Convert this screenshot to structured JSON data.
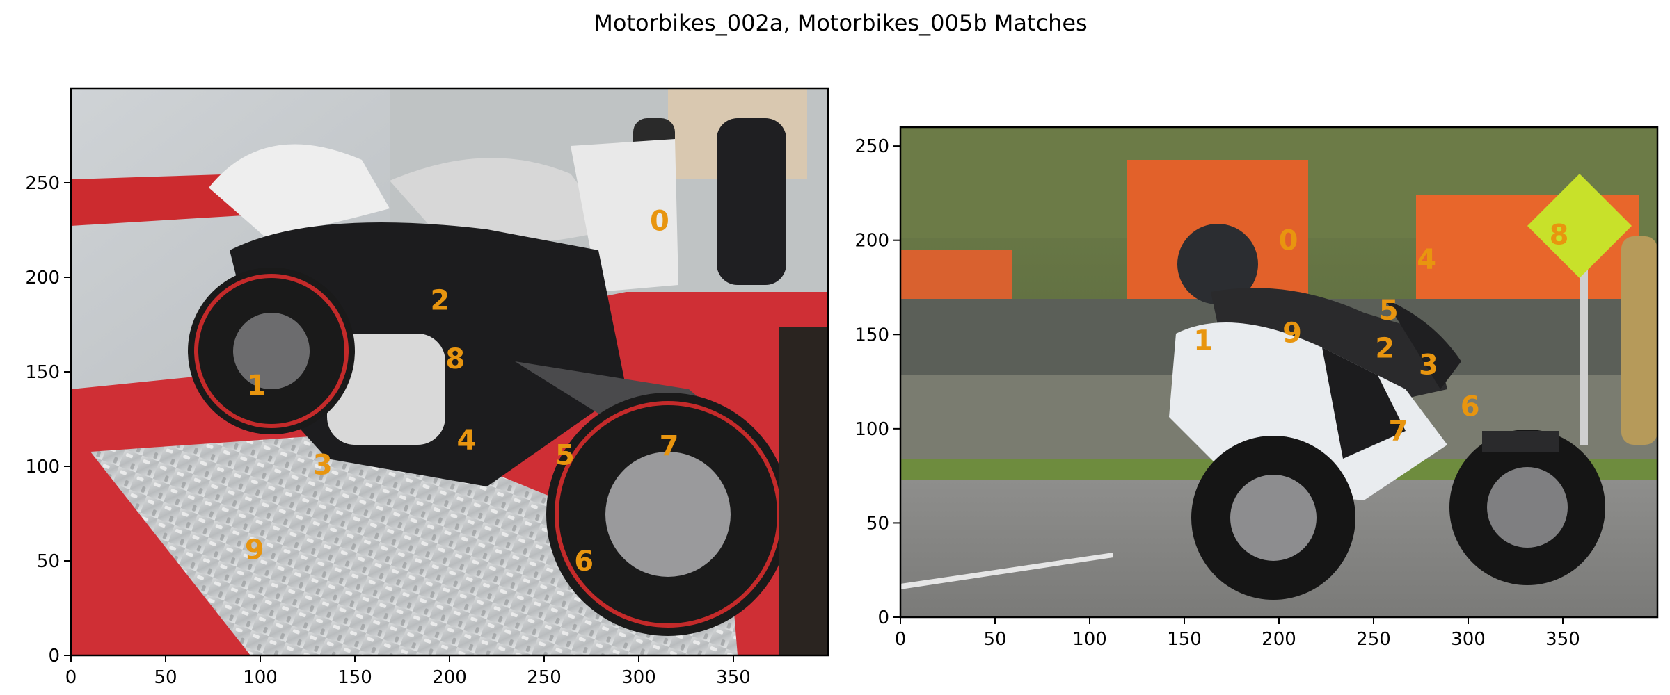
{
  "title": "Motorbikes_002a, Motorbikes_005b Matches",
  "colors": {
    "keypoint_label": "#e8950f",
    "axes": "#000000",
    "background": "#ffffff"
  },
  "chart_data": [
    {
      "type": "scatter",
      "image": "Motorbikes_002a",
      "xlim": [
        0,
        400
      ],
      "ylim": [
        300,
        0
      ],
      "x_ticks": [
        0,
        50,
        100,
        150,
        200,
        250,
        300,
        350
      ],
      "y_ticks": [
        0,
        50,
        100,
        150,
        200,
        250
      ],
      "points": [
        {
          "label": "0",
          "x": 311,
          "y": 230
        },
        {
          "label": "1",
          "x": 98,
          "y": 143
        },
        {
          "label": "2",
          "x": 195,
          "y": 188
        },
        {
          "label": "3",
          "x": 133,
          "y": 101
        },
        {
          "label": "4",
          "x": 209,
          "y": 114
        },
        {
          "label": "5",
          "x": 261,
          "y": 106
        },
        {
          "label": "6",
          "x": 271,
          "y": 50
        },
        {
          "label": "7",
          "x": 316,
          "y": 111
        },
        {
          "label": "8",
          "x": 203,
          "y": 157
        },
        {
          "label": "9",
          "x": 97,
          "y": 56
        }
      ]
    },
    {
      "type": "scatter",
      "image": "Motorbikes_005b",
      "xlim": [
        0,
        400
      ],
      "ylim": [
        260,
        0
      ],
      "x_ticks": [
        0,
        50,
        100,
        150,
        200,
        250,
        300,
        350
      ],
      "y_ticks": [
        0,
        50,
        100,
        150,
        200,
        250
      ],
      "points": [
        {
          "label": "0",
          "x": 205,
          "y": 200
        },
        {
          "label": "1",
          "x": 160,
          "y": 147
        },
        {
          "label": "2",
          "x": 256,
          "y": 143
        },
        {
          "label": "3",
          "x": 279,
          "y": 134
        },
        {
          "label": "4",
          "x": 278,
          "y": 190
        },
        {
          "label": "5",
          "x": 258,
          "y": 163
        },
        {
          "label": "6",
          "x": 301,
          "y": 112
        },
        {
          "label": "7",
          "x": 263,
          "y": 99
        },
        {
          "label": "8",
          "x": 348,
          "y": 203
        },
        {
          "label": "9",
          "x": 207,
          "y": 151
        }
      ]
    }
  ]
}
